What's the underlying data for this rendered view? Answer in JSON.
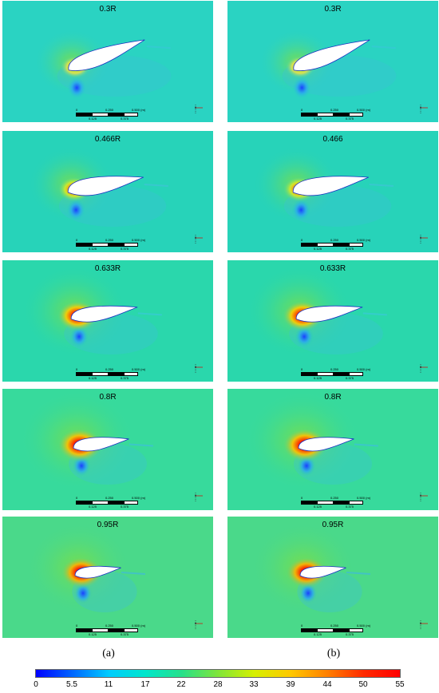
{
  "colors": {
    "background_field": "#23d4b4",
    "colormap": [
      "#0000ff",
      "#0066ff",
      "#00ccff",
      "#00e6cc",
      "#26e08a",
      "#7fe53a",
      "#d6f000",
      "#ffc800",
      "#ff8000",
      "#ff2a00",
      "#ff0000"
    ]
  },
  "panels": [
    {
      "id": "a1",
      "title": "0.3R"
    },
    {
      "id": "b1",
      "title": "0.3R"
    },
    {
      "id": "a2",
      "title": "0.466R"
    },
    {
      "id": "b2",
      "title": "0.466"
    },
    {
      "id": "a3",
      "title": "0.633R"
    },
    {
      "id": "b3",
      "title": "0.633R"
    },
    {
      "id": "a4",
      "title": "0.8R"
    },
    {
      "id": "b4",
      "title": "0.8R"
    },
    {
      "id": "a5",
      "title": "0.95R"
    },
    {
      "id": "b5",
      "title": "0.95R"
    }
  ],
  "scale_bar": {
    "top_labels": [
      "0",
      "0.250",
      "0.500 (m)"
    ],
    "bottom_labels": [
      "0.125",
      "0.375"
    ]
  },
  "column_labels": {
    "a": "(a)",
    "b": "(b)"
  },
  "colorbar": {
    "ticks": [
      "0",
      "5.5",
      "11",
      "17",
      "22",
      "28",
      "33",
      "39",
      "44",
      "50",
      "55"
    ]
  }
}
